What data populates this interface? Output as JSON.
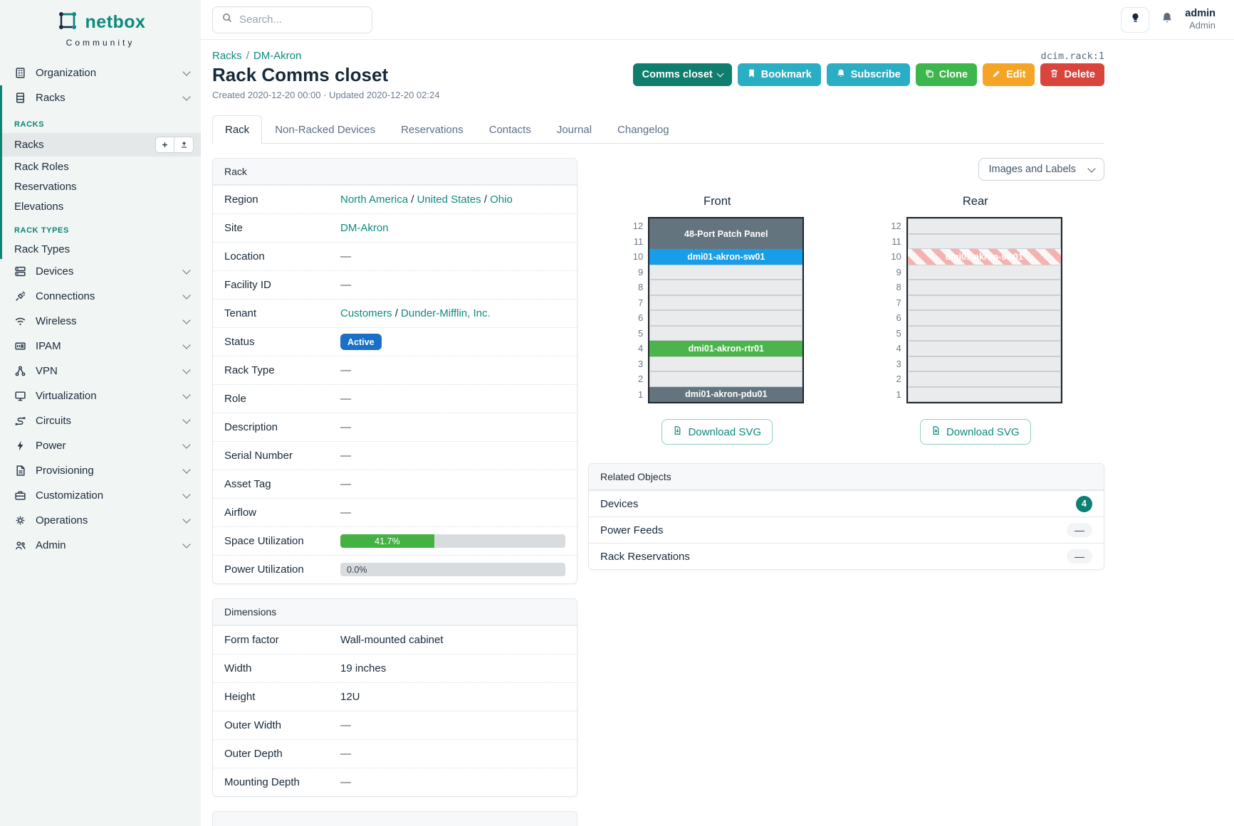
{
  "brand": {
    "name": "netbox",
    "subtitle": "Community"
  },
  "topbar": {
    "search_placeholder": "Search...",
    "user_name": "admin",
    "user_role": "Admin"
  },
  "object_id": "dcim.rack:1",
  "sep": "/",
  "breadcrumb": {
    "items": [
      "Racks",
      "DM-Akron"
    ]
  },
  "header": {
    "title": "Rack Comms closet",
    "meta": "Created 2020-12-20 00:00 · Updated 2020-12-20 02:24"
  },
  "actions": {
    "context": "Comms closet",
    "bookmark": "Bookmark",
    "subscribe": "Subscribe",
    "clone": "Clone",
    "edit": "Edit",
    "delete": "Delete"
  },
  "tabs": [
    {
      "label": "Rack",
      "active": true
    },
    {
      "label": "Non-Racked Devices"
    },
    {
      "label": "Reservations"
    },
    {
      "label": "Contacts"
    },
    {
      "label": "Journal"
    },
    {
      "label": "Changelog"
    }
  ],
  "rack_panel": {
    "title": "Rack",
    "region": {
      "label": "Region",
      "parts": [
        "North America",
        "United States",
        "Ohio"
      ]
    },
    "site": {
      "label": "Site",
      "value": "DM-Akron"
    },
    "location": {
      "label": "Location",
      "value": "—"
    },
    "facility_id": {
      "label": "Facility ID",
      "value": "—"
    },
    "tenant": {
      "label": "Tenant",
      "parts": [
        "Customers",
        "Dunder-Mifflin, Inc."
      ]
    },
    "status": {
      "label": "Status",
      "value": "Active"
    },
    "rack_type": {
      "label": "Rack Type",
      "value": "—"
    },
    "role": {
      "label": "Role",
      "value": "—"
    },
    "description": {
      "label": "Description",
      "value": "—"
    },
    "serial_number": {
      "label": "Serial Number",
      "value": "—"
    },
    "asset_tag": {
      "label": "Asset Tag",
      "value": "—"
    },
    "airflow": {
      "label": "Airflow",
      "value": "—"
    },
    "space_utilization": {
      "label": "Space Utilization",
      "percent": 41.7,
      "text": "41.7%"
    },
    "power_utilization": {
      "label": "Power Utilization",
      "percent": 0,
      "text": "0.0%"
    }
  },
  "dimensions": {
    "title": "Dimensions",
    "form_factor": {
      "label": "Form factor",
      "value": "Wall-mounted cabinet"
    },
    "width": {
      "label": "Width",
      "value": "19 inches"
    },
    "height": {
      "label": "Height",
      "value": "12U"
    },
    "outer_width": {
      "label": "Outer Width",
      "value": "—"
    },
    "outer_depth": {
      "label": "Outer Depth",
      "value": "—"
    },
    "mounting_depth": {
      "label": "Mounting Depth",
      "value": "—"
    }
  },
  "elevations": {
    "view_select": "Images and Labels",
    "unit_numbers": [
      "12",
      "11",
      "10",
      "9",
      "8",
      "7",
      "6",
      "5",
      "4",
      "3",
      "2",
      "1"
    ],
    "front": {
      "title": "Front",
      "download_label": "Download SVG",
      "units": [
        {
          "label": "48-Port Patch Panel",
          "type": "slate",
          "span": 2,
          "top_u": 12
        },
        {
          "label": "dmi01-akron-sw01",
          "type": "blue",
          "span": 1,
          "top_u": 10
        },
        {
          "type": "empty",
          "top_u": 9
        },
        {
          "type": "empty",
          "top_u": 8
        },
        {
          "type": "empty",
          "top_u": 7
        },
        {
          "type": "empty",
          "top_u": 6
        },
        {
          "type": "empty",
          "top_u": 5
        },
        {
          "label": "dmi01-akron-rtr01",
          "type": "green",
          "span": 1,
          "top_u": 4
        },
        {
          "type": "empty",
          "top_u": 3
        },
        {
          "type": "empty",
          "top_u": 2
        },
        {
          "label": "dmi01-akron-pdu01",
          "type": "slate",
          "span": 1,
          "top_u": 1
        }
      ]
    },
    "rear": {
      "title": "Rear",
      "download_label": "Download SVG",
      "units": [
        {
          "type": "empty",
          "top_u": 12
        },
        {
          "type": "empty",
          "top_u": 11
        },
        {
          "label": "dmi01-akron-sw01",
          "type": "striped",
          "span": 1,
          "top_u": 10
        },
        {
          "type": "empty",
          "top_u": 9
        },
        {
          "type": "empty",
          "top_u": 8
        },
        {
          "type": "empty",
          "top_u": 7
        },
        {
          "type": "empty",
          "top_u": 6
        },
        {
          "type": "empty",
          "top_u": 5
        },
        {
          "type": "empty",
          "top_u": 4
        },
        {
          "type": "empty",
          "top_u": 3
        },
        {
          "type": "empty",
          "top_u": 2
        },
        {
          "type": "empty",
          "top_u": 1
        }
      ]
    }
  },
  "related_objects": {
    "title": "Related Objects",
    "rows": [
      {
        "label": "Devices",
        "count": "4"
      },
      {
        "label": "Power Feeds",
        "value": "—"
      },
      {
        "label": "Rack Reservations",
        "value": "—"
      }
    ]
  },
  "sidebar": {
    "items": [
      {
        "label": "Organization",
        "icon": "building"
      },
      {
        "label": "Racks",
        "icon": "rack",
        "expanded": true
      },
      {
        "label": "Devices",
        "icon": "devices"
      },
      {
        "label": "Connections",
        "icon": "plug"
      },
      {
        "label": "Wireless",
        "icon": "wifi"
      },
      {
        "label": "IPAM",
        "icon": "ipam"
      },
      {
        "label": "VPN",
        "icon": "vpn"
      },
      {
        "label": "Virtualization",
        "icon": "monitor"
      },
      {
        "label": "Circuits",
        "icon": "circuits"
      },
      {
        "label": "Power",
        "icon": "bolt"
      },
      {
        "label": "Provisioning",
        "icon": "document"
      },
      {
        "label": "Customization",
        "icon": "briefcase"
      },
      {
        "label": "Operations",
        "icon": "gear"
      },
      {
        "label": "Admin",
        "icon": "users"
      }
    ],
    "racks_submenu": {
      "heading": "RACKS",
      "items": [
        {
          "label": "Racks",
          "active": true
        },
        {
          "label": "Rack Roles"
        },
        {
          "label": "Reservations"
        },
        {
          "label": "Elevations"
        }
      ]
    },
    "rack_types_submenu": {
      "heading": "RACK TYPES",
      "items": [
        {
          "label": "Rack Types"
        }
      ]
    }
  },
  "colors": {
    "accent_teal": "#0c8577",
    "link_teal": "#0d8a7e",
    "status_active_blue": "#1a70c7",
    "progress_green": "#43b243",
    "device_blue": "#189ee8",
    "device_green": "#4cb44c",
    "device_slate": "#64747f",
    "reserved_stripe_red": "#f4b3b0",
    "button_cyan": "#2aaec4",
    "button_green": "#3db64b",
    "button_orange": "#f5a525",
    "button_red": "#d9453c",
    "button_dark_teal": "#0f7e6e"
  }
}
